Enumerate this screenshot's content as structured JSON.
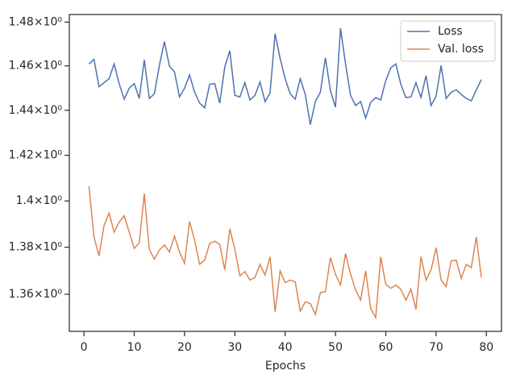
{
  "chart_data": {
    "type": "line",
    "xlabel": "Epochs",
    "x": [
      1,
      2,
      3,
      4,
      5,
      6,
      7,
      8,
      9,
      10,
      11,
      12,
      13,
      14,
      15,
      16,
      17,
      18,
      19,
      20,
      21,
      22,
      23,
      24,
      25,
      26,
      27,
      28,
      29,
      30,
      31,
      32,
      33,
      34,
      35,
      36,
      37,
      38,
      39,
      40,
      41,
      42,
      43,
      44,
      45,
      46,
      47,
      48,
      49,
      50,
      51,
      52,
      53,
      54,
      55,
      56,
      57,
      58,
      59,
      60,
      61,
      62,
      63,
      64,
      65,
      66,
      67,
      68,
      69,
      70,
      71,
      72,
      73,
      74,
      75,
      76,
      77,
      78,
      79
    ],
    "series": [
      {
        "name": "Loss",
        "color": "#4c72b0",
        "values": [
          1.4609,
          1.463,
          1.4506,
          1.4524,
          1.4542,
          1.4609,
          1.452,
          1.445,
          1.4499,
          1.452,
          1.4453,
          1.4627,
          1.4453,
          1.4474,
          1.4602,
          1.4711,
          1.4598,
          1.4573,
          1.446,
          1.4499,
          1.4559,
          1.4481,
          1.4432,
          1.4411,
          1.4517,
          1.452,
          1.4432,
          1.4595,
          1.4669,
          1.4467,
          1.446,
          1.4524,
          1.4446,
          1.4467,
          1.4527,
          1.4439,
          1.4478,
          1.4747,
          1.4634,
          1.4542,
          1.4474,
          1.445,
          1.4542,
          1.4471,
          1.4336,
          1.4439,
          1.4481,
          1.4637,
          1.4488,
          1.4414,
          1.4772,
          1.4609,
          1.4467,
          1.4421,
          1.4439,
          1.4365,
          1.4435,
          1.4457,
          1.4446,
          1.4534,
          1.4591,
          1.4609,
          1.4517,
          1.4457,
          1.446,
          1.4524,
          1.4457,
          1.4556,
          1.4421,
          1.4464,
          1.4602,
          1.4453,
          1.4481,
          1.4492,
          1.4471,
          1.4453,
          1.4442,
          1.4492,
          1.4538
        ]
      },
      {
        "name": "Val. loss",
        "color": "#dd8452",
        "values": [
          1.4064,
          1.3844,
          1.3763,
          1.3894,
          1.3947,
          1.3865,
          1.3908,
          1.3936,
          1.3865,
          1.3795,
          1.3819,
          1.4032,
          1.3791,
          1.3749,
          1.3788,
          1.3809,
          1.378,
          1.3848,
          1.378,
          1.3731,
          1.3911,
          1.383,
          1.3727,
          1.3745,
          1.3816,
          1.3826,
          1.3812,
          1.3703,
          1.388,
          1.3791,
          1.3678,
          1.3696,
          1.366,
          1.3671,
          1.3727,
          1.3681,
          1.3759,
          1.3526,
          1.3699,
          1.3649,
          1.366,
          1.3653,
          1.3529,
          1.3568,
          1.3561,
          1.3515,
          1.3607,
          1.3611,
          1.3756,
          1.3685,
          1.3639,
          1.3773,
          1.3685,
          1.3618,
          1.3575,
          1.3699,
          1.354,
          1.3501,
          1.3759,
          1.3642,
          1.3625,
          1.3639,
          1.3621,
          1.3575,
          1.3621,
          1.3536,
          1.3759,
          1.366,
          1.3703,
          1.3798,
          1.366,
          1.3632,
          1.3742,
          1.3745,
          1.3667,
          1.3727,
          1.3713,
          1.3844,
          1.3671
        ]
      }
    ],
    "xlim": [
      -2.9,
      83
    ],
    "xticks": [
      0,
      10,
      20,
      30,
      40,
      50,
      60,
      70,
      80
    ],
    "ylim": [
      1.3444,
      1.4835
    ],
    "ylog": true,
    "yticks": [
      {
        "value": 1.36,
        "label": "1.36×10⁰"
      },
      {
        "value": 1.38,
        "label": "1.38×10⁰"
      },
      {
        "value": 1.4,
        "label": "1.4×10⁰"
      },
      {
        "value": 1.42,
        "label": "1.42×10⁰"
      },
      {
        "value": 1.44,
        "label": "1.44×10⁰"
      },
      {
        "value": 1.46,
        "label": "1.46×10⁰"
      },
      {
        "value": 1.48,
        "label": "1.48×10⁰"
      }
    ],
    "grid": false,
    "legend": "upper right"
  }
}
